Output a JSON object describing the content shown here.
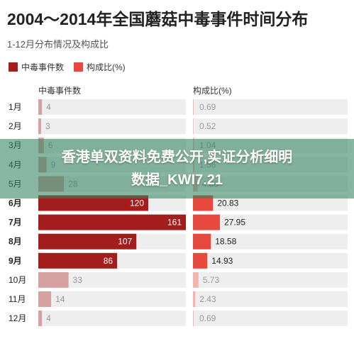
{
  "title": "2004～2014年全国蘑菇中毒事件时间分布",
  "subtitle": "1-12月分布情况及构成比",
  "legend": {
    "cases_label": "中毒事件数",
    "ratio_label": "构成比(%)"
  },
  "colors": {
    "dark_bar": "#a41d1d",
    "dark_bar_light": "#d6a1a1",
    "ratio_bar": "#e8493f",
    "ratio_bar_light": "#f3b3ae",
    "track": "#eeeeee"
  },
  "banner": {
    "line1": "香港单双资料免费公开,实证分析细明",
    "line2": "数据_KWI7.21"
  },
  "chart_data": {
    "type": "bar",
    "categories": [
      "1月",
      "2月",
      "3月",
      "4月",
      "5月",
      "6月",
      "7月",
      "8月",
      "9月",
      "10月",
      "11月",
      "12月"
    ],
    "highlighted": [
      "6月",
      "7月",
      "8月",
      "9月"
    ],
    "series": [
      {
        "name": "中毒事件数",
        "values": [
          4,
          3,
          6,
          9,
          28,
          120,
          161,
          107,
          86,
          33,
          14,
          4
        ],
        "value_labels": [
          "4",
          "3",
          "6",
          "9",
          "28",
          "120",
          "161",
          "107",
          "86",
          "33",
          "14",
          "4"
        ],
        "max": 161
      },
      {
        "name": "构成比(%)",
        "values": [
          0.69,
          0.52,
          1.04,
          1.56,
          4.86,
          20.83,
          27.95,
          18.58,
          14.93,
          5.73,
          2.43,
          0.69
        ],
        "value_labels": [
          "0.69",
          "0.52",
          "1.04",
          "1.56",
          "4.86",
          "20.83",
          "27.95",
          "18.58",
          "14.93",
          "5.73",
          "2.43",
          "0.69"
        ],
        "max": 27.95
      }
    ]
  }
}
